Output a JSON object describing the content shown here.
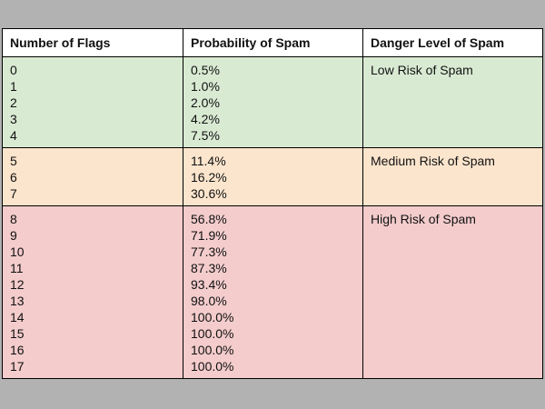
{
  "table": {
    "headers": [
      "Number of Flags",
      "Probability of Spam",
      "Danger Level of Spam"
    ],
    "sections": [
      {
        "risk_label": "Low Risk of Spam",
        "bg": "#d9ead3",
        "flags": [
          "0",
          "1",
          "2",
          "3",
          "4"
        ],
        "probabilities": [
          "0.5%",
          "1.0%",
          "2.0%",
          "4.2%",
          "7.5%"
        ]
      },
      {
        "risk_label": "Medium Risk of Spam",
        "bg": "#fce5cd",
        "flags": [
          "5",
          "6",
          "7"
        ],
        "probabilities": [
          "11.4%",
          "16.2%",
          "30.6%"
        ]
      },
      {
        "risk_label": "High Risk of Spam",
        "bg": "#f4cccc",
        "flags": [
          "8",
          "9",
          "10",
          "11",
          "12",
          "13",
          "14",
          "15",
          "16",
          "17"
        ],
        "probabilities": [
          "56.8%",
          "71.9%",
          "77.3%",
          "87.3%",
          "93.4%",
          "98.0%",
          "100.0%",
          "100.0%",
          "100.0%",
          "100.0%"
        ]
      }
    ]
  },
  "colors": {
    "page_background": "#b2b2b3",
    "header_background": "#ffffff",
    "border": "#000000",
    "text": "#111111",
    "low_risk_background": "#d9ead3",
    "medium_risk_background": "#fce5cd",
    "high_risk_background": "#f4cccc"
  },
  "chart_data": {
    "type": "table",
    "title": "",
    "columns": [
      "Number of Flags",
      "Probability of Spam",
      "Danger Level of Spam"
    ],
    "rows": [
      [
        0,
        "0.5%",
        "Low Risk of Spam"
      ],
      [
        1,
        "1.0%",
        "Low Risk of Spam"
      ],
      [
        2,
        "2.0%",
        "Low Risk of Spam"
      ],
      [
        3,
        "4.2%",
        "Low Risk of Spam"
      ],
      [
        4,
        "7.5%",
        "Low Risk of Spam"
      ],
      [
        5,
        "11.4%",
        "Medium Risk of Spam"
      ],
      [
        6,
        "16.2%",
        "Medium Risk of Spam"
      ],
      [
        7,
        "30.6%",
        "Medium Risk of Spam"
      ],
      [
        8,
        "56.8%",
        "High Risk of Spam"
      ],
      [
        9,
        "71.9%",
        "High Risk of Spam"
      ],
      [
        10,
        "77.3%",
        "High Risk of Spam"
      ],
      [
        11,
        "87.3%",
        "High Risk of Spam"
      ],
      [
        12,
        "93.4%",
        "High Risk of Spam"
      ],
      [
        13,
        "98.0%",
        "High Risk of Spam"
      ],
      [
        14,
        "100.0%",
        "High Risk of Spam"
      ],
      [
        15,
        "100.0%",
        "High Risk of Spam"
      ],
      [
        16,
        "100.0%",
        "High Risk of Spam"
      ],
      [
        17,
        "100.0%",
        "High Risk of Spam"
      ]
    ]
  }
}
